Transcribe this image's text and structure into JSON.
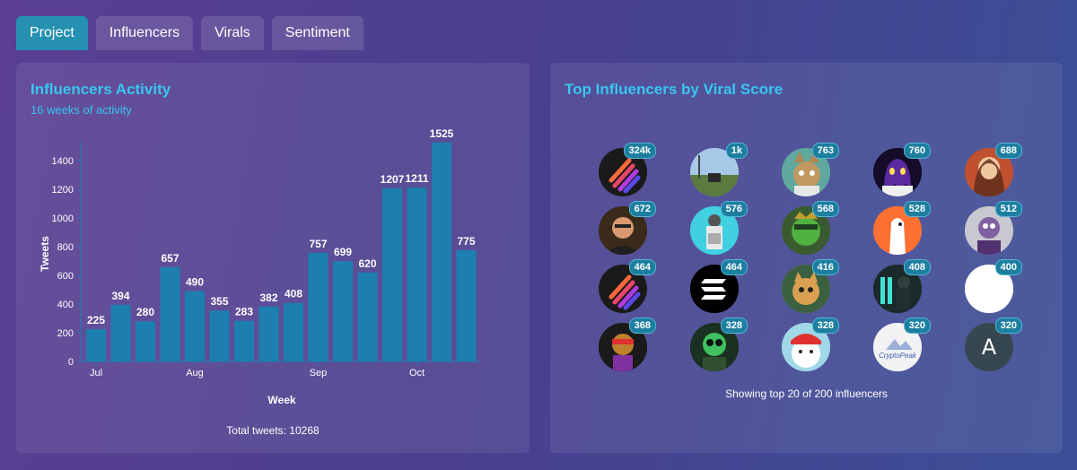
{
  "tabs": [
    "Project",
    "Influencers",
    "Virals",
    "Sentiment"
  ],
  "activity": {
    "title": "Influencers Activity",
    "subtitle": "16 weeks of activity",
    "total": "Total tweets: 10268"
  },
  "chart_data": {
    "type": "bar",
    "title": "Influencers Activity",
    "xlabel": "Week",
    "ylabel": "Tweets",
    "ylim": [
      0,
      1500
    ],
    "yticks": [
      0,
      200,
      400,
      600,
      800,
      1000,
      1200,
      1400
    ],
    "values": [
      225,
      394,
      280,
      657,
      490,
      355,
      283,
      382,
      408,
      757,
      699,
      620,
      1207,
      1211,
      1525,
      775
    ],
    "month_labels": [
      {
        "label": "Jul",
        "index": 0
      },
      {
        "label": "Aug",
        "index": 4
      },
      {
        "label": "Sep",
        "index": 9
      },
      {
        "label": "Oct",
        "index": 13
      }
    ],
    "bar_color": "#1c7fb0"
  },
  "influencers": {
    "title": "Top Influencers by Viral Score",
    "footer": "Showing top 20 of 200 influencers",
    "items": [
      {
        "score": "324k",
        "avatar": "streaks",
        "bg": "#1a1a1a"
      },
      {
        "score": "1k",
        "avatar": "landscape",
        "bg": "#7f9fc0"
      },
      {
        "score": "763",
        "avatar": "cat",
        "bg": "#5fa8a0"
      },
      {
        "score": "760",
        "avatar": "ghost",
        "bg": "#1a1030"
      },
      {
        "score": "688",
        "avatar": "portrait",
        "bg": "#9a3020"
      },
      {
        "score": "672",
        "avatar": "person",
        "bg": "#3a2010"
      },
      {
        "score": "576",
        "avatar": "figure",
        "bg": "#40d0e0"
      },
      {
        "score": "568",
        "avatar": "green-face",
        "bg": "#3a6030"
      },
      {
        "score": "528",
        "avatar": "fox",
        "bg": "#ff7030"
      },
      {
        "score": "512",
        "avatar": "character",
        "bg": "#c0c0c8"
      },
      {
        "score": "464",
        "avatar": "streaks",
        "bg": "#1a1a1a"
      },
      {
        "score": "464",
        "avatar": "solana",
        "bg": "#000000"
      },
      {
        "score": "416",
        "avatar": "cat-2",
        "bg": "#c09040"
      },
      {
        "score": "408",
        "avatar": "dark-figure",
        "bg": "#203030"
      },
      {
        "score": "400",
        "avatar": "white",
        "bg": "#ffffff"
      },
      {
        "score": "368",
        "avatar": "colorful",
        "bg": "#202020"
      },
      {
        "score": "328",
        "avatar": "green-char",
        "bg": "#204030"
      },
      {
        "score": "328",
        "avatar": "cap-penguin",
        "bg": "#a0d8e8"
      },
      {
        "score": "320",
        "avatar": "cryptopeak",
        "bg": "#f0f0f0",
        "text": "CryptoPeak"
      },
      {
        "score": "320",
        "avatar": "letter",
        "bg": "#37474f",
        "text": "A"
      }
    ]
  }
}
